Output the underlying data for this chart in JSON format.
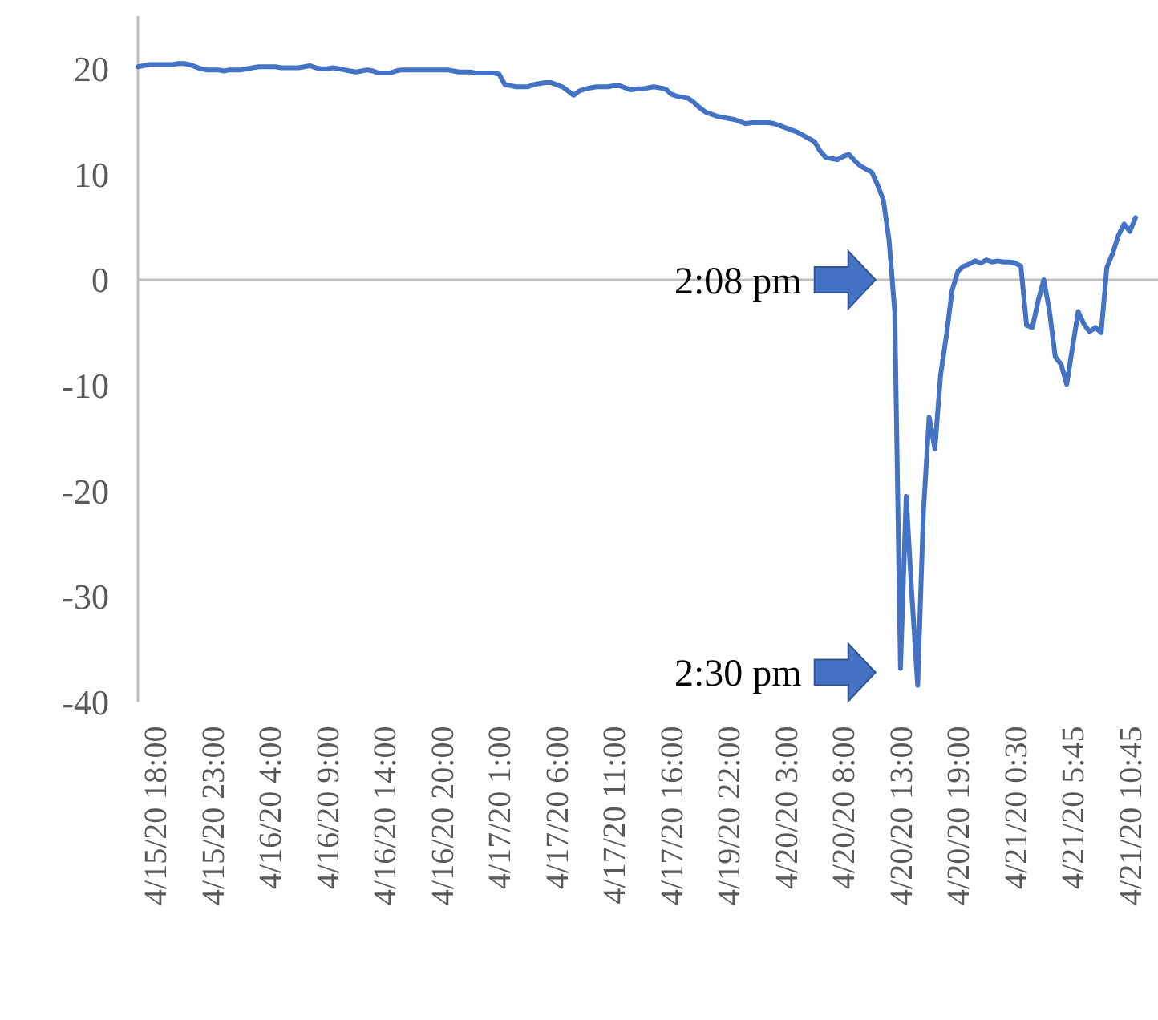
{
  "chart_data": {
    "type": "line",
    "categories": [
      null,
      null,
      null,
      "4/15/20 18:00",
      null,
      null,
      null,
      null,
      null,
      null,
      null,
      null,
      null,
      "4/15/20 23:00",
      null,
      null,
      null,
      null,
      null,
      null,
      null,
      null,
      null,
      "4/16/20 4:00",
      null,
      null,
      null,
      null,
      null,
      null,
      null,
      null,
      null,
      "4/16/20 9:00",
      null,
      null,
      null,
      null,
      null,
      null,
      null,
      null,
      null,
      "4/16/20 14:00",
      null,
      null,
      null,
      null,
      null,
      null,
      null,
      null,
      null,
      "4/16/20 20:00",
      null,
      null,
      null,
      null,
      null,
      null,
      null,
      null,
      null,
      "4/17/20 1:00",
      null,
      null,
      null,
      null,
      null,
      null,
      null,
      null,
      null,
      "4/17/20 6:00",
      null,
      null,
      null,
      null,
      null,
      null,
      null,
      null,
      null,
      "4/17/20 11:00",
      null,
      null,
      null,
      null,
      null,
      null,
      null,
      null,
      null,
      "4/17/20 16:00",
      null,
      null,
      null,
      null,
      null,
      null,
      null,
      null,
      null,
      "4/19/20 22:00",
      null,
      null,
      null,
      null,
      null,
      null,
      null,
      null,
      null,
      "4/20/20 3:00",
      null,
      null,
      null,
      null,
      null,
      null,
      null,
      null,
      null,
      "4/20/20 8:00",
      null,
      null,
      null,
      null,
      null,
      null,
      null,
      null,
      null,
      "4/20/20 13:00",
      null,
      null,
      null,
      null,
      null,
      null,
      null,
      null,
      null,
      "4/20/20 19:00",
      null,
      null,
      null,
      null,
      null,
      null,
      null,
      null,
      null,
      "4/21/20 0:30",
      null,
      null,
      null,
      null,
      null,
      null,
      null,
      null,
      null,
      "4/21/20 5:45",
      null,
      null,
      null,
      null,
      null,
      null,
      null,
      null,
      null,
      "4/21/20 10:45",
      null
    ],
    "series": [
      {
        "color": "#4472c4",
        "values": [
          20.2,
          20.3,
          20.4,
          20.4,
          20.4,
          20.4,
          20.4,
          20.5,
          20.5,
          20.4,
          20.2,
          20.0,
          19.9,
          19.9,
          19.9,
          19.8,
          19.9,
          19.9,
          19.9,
          20.0,
          20.1,
          20.2,
          20.2,
          20.2,
          20.2,
          20.1,
          20.1,
          20.1,
          20.1,
          20.2,
          20.3,
          20.1,
          20.0,
          20.0,
          20.1,
          20.0,
          19.9,
          19.8,
          19.7,
          19.8,
          19.9,
          19.8,
          19.6,
          19.6,
          19.6,
          19.8,
          19.9,
          19.9,
          19.9,
          19.9,
          19.9,
          19.9,
          19.9,
          19.9,
          19.9,
          19.8,
          19.7,
          19.7,
          19.7,
          19.6,
          19.6,
          19.6,
          19.6,
          19.5,
          18.5,
          18.4,
          18.3,
          18.3,
          18.3,
          18.5,
          18.6,
          18.7,
          18.7,
          18.5,
          18.3,
          17.9,
          17.5,
          17.9,
          18.1,
          18.2,
          18.3,
          18.3,
          18.3,
          18.4,
          18.4,
          18.2,
          18.0,
          18.1,
          18.1,
          18.2,
          18.3,
          18.2,
          18.1,
          17.6,
          17.4,
          17.3,
          17.2,
          16.8,
          16.3,
          15.9,
          15.7,
          15.5,
          15.4,
          15.3,
          15.2,
          15.0,
          14.8,
          14.9,
          14.9,
          14.9,
          14.9,
          14.8,
          14.6,
          14.4,
          14.2,
          14.0,
          13.7,
          13.4,
          13.1,
          12.2,
          11.6,
          11.5,
          11.4,
          11.7,
          11.9,
          11.3,
          10.8,
          10.5,
          10.2,
          9.0,
          7.6,
          3.8,
          -3,
          -36.8,
          -20.5,
          -30,
          -38.4,
          -22,
          -13,
          -16,
          -9,
          -5.3,
          -1,
          0.8,
          1.3,
          1.5,
          1.8,
          1.6,
          1.9,
          1.7,
          1.8,
          1.7,
          1.7,
          1.6,
          1.3,
          -4.3,
          -4.5,
          -2,
          0,
          -3,
          -7.3,
          -8,
          -9.9,
          -6.4,
          -3,
          -4.2,
          -4.9,
          -4.5,
          -5,
          1.2,
          2.5,
          4.2,
          5.3,
          4.6,
          5.9
        ]
      }
    ],
    "ylim": [
      -40,
      25
    ],
    "yticks": [
      -40,
      -30,
      -20,
      -10,
      0,
      10,
      20
    ],
    "grid": false,
    "legend": false,
    "marker": "none",
    "line_style": "solid",
    "ref_lines": [
      {
        "axis": "y",
        "value": 0,
        "color": "#bfbfbf",
        "line_style": "solid"
      }
    ],
    "annotations": [
      "2:08 pm",
      "2:30 pm"
    ]
  }
}
